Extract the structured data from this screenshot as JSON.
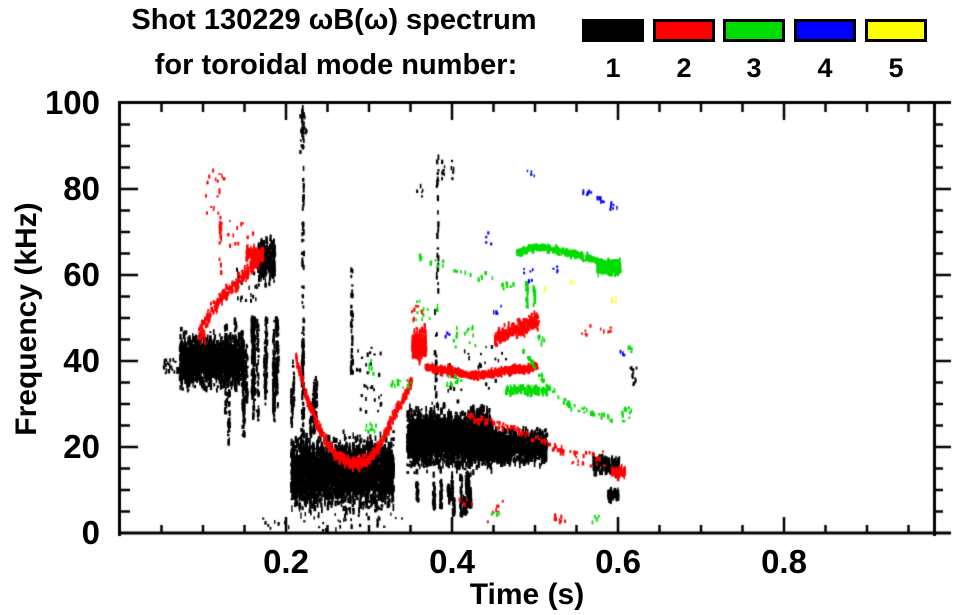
{
  "header": {
    "title_line1": "Shot 130229 ωB(ω) spectrum",
    "title_line2": "for toroidal mode number:"
  },
  "legend": {
    "items": [
      {
        "label": "1",
        "color": "#000000"
      },
      {
        "label": "2",
        "color": "#ff0000"
      },
      {
        "label": "3",
        "color": "#00dc00"
      },
      {
        "label": "4",
        "color": "#0000ff"
      },
      {
        "label": "5",
        "color": "#ffff00"
      }
    ]
  },
  "chart_data": {
    "type": "scatter",
    "title": "Shot 130229 ωB(ω) spectrum for toroidal mode number: 1 2 3 4 5",
    "xlabel": "Time (s)",
    "ylabel": "Frequency (kHz)",
    "xlim": [
      0,
      1.0
    ],
    "ylim": [
      0,
      100
    ],
    "xticks": [
      0.2,
      0.4,
      0.6,
      0.8
    ],
    "xtick_labels": [
      "0.2",
      "0.4",
      "0.6",
      "0.8"
    ],
    "yticks": [
      0,
      20,
      40,
      60,
      80,
      100
    ],
    "ytick_labels": [
      "0",
      "20",
      "40",
      "60",
      "80",
      "100"
    ],
    "x_minor_step": 0.05,
    "y_minor_step": 5,
    "grid": false,
    "legend_position": "top-right",
    "series": [
      {
        "mode": 1,
        "name": "1",
        "color": "#000000"
      },
      {
        "mode": 2,
        "name": "2",
        "color": "#ff0000"
      },
      {
        "mode": 3,
        "name": "3",
        "color": "#00dc00"
      },
      {
        "mode": 4,
        "name": "4",
        "color": "#0000ff"
      },
      {
        "mode": 5,
        "name": "5",
        "color": "#ffff00"
      }
    ],
    "clusters": [
      {
        "m": 1,
        "k": "dots",
        "t": [
          0.052,
          0.075
        ],
        "f": [
          37,
          41
        ],
        "n": 30
      },
      {
        "m": 1,
        "k": "blob",
        "t": [
          0.072,
          0.15
        ],
        "f": [
          32,
          48
        ],
        "n": 1600
      },
      {
        "m": 1,
        "k": "vstreaks",
        "t": [
          0.125,
          0.19
        ],
        "f": [
          20,
          50
        ],
        "c": 16,
        "n": 42
      },
      {
        "m": 1,
        "k": "blob",
        "t": [
          0.166,
          0.187
        ],
        "f": [
          57,
          70
        ],
        "n": 300
      },
      {
        "m": 1,
        "k": "dots",
        "t": [
          0.14,
          0.166
        ],
        "f": [
          54,
          62
        ],
        "n": 26
      },
      {
        "m": 1,
        "k": "vline",
        "t": 0.2205,
        "f": [
          30,
          99
        ],
        "n": 70
      },
      {
        "m": 1,
        "k": "vline",
        "t": 0.2205,
        "f": [
          14,
          45
        ],
        "n": 80
      },
      {
        "m": 1,
        "k": "dots",
        "t": [
          0.217,
          0.225
        ],
        "f": [
          88,
          99
        ],
        "n": 14
      },
      {
        "m": 1,
        "k": "blob",
        "t": [
          0.206,
          0.33
        ],
        "f": [
          3.5,
          24.5
        ],
        "n": 3000
      },
      {
        "m": 1,
        "k": "vstreaks",
        "t": [
          0.207,
          0.24
        ],
        "f": [
          22,
          40
        ],
        "c": 6,
        "n": 22
      },
      {
        "m": 1,
        "k": "vline",
        "t": 0.2795,
        "f": [
          36,
          62
        ],
        "n": 34
      },
      {
        "m": 1,
        "k": "dots",
        "t": [
          0.285,
          0.315
        ],
        "f": [
          27,
          44
        ],
        "n": 30
      },
      {
        "m": 1,
        "k": "dots",
        "t": [
          0.17,
          0.345
        ],
        "f": [
          0.5,
          4.5
        ],
        "n": 40
      },
      {
        "m": 1,
        "k": "blob",
        "t": [
          0.346,
          0.448
        ],
        "f": [
          13,
          31
        ],
        "n": 2600
      },
      {
        "m": 1,
        "k": "blob",
        "t": [
          0.443,
          0.515
        ],
        "f": [
          15,
          25
        ],
        "n": 1000
      },
      {
        "m": 1,
        "k": "vstreaks",
        "t": [
          0.35,
          0.43
        ],
        "f": [
          3,
          14
        ],
        "c": 12,
        "n": 26
      },
      {
        "m": 1,
        "k": "vline",
        "t": 0.3825,
        "f": [
          55,
          88
        ],
        "n": 26
      },
      {
        "m": 1,
        "k": "dots",
        "t": [
          0.388,
          0.403
        ],
        "f": [
          82,
          87
        ],
        "n": 12
      },
      {
        "m": 1,
        "k": "dots",
        "t": [
          0.358,
          0.365
        ],
        "f": [
          78,
          81
        ],
        "n": 5
      },
      {
        "m": 1,
        "k": "vline",
        "t": 0.3805,
        "f": [
          31,
          54
        ],
        "n": 22
      },
      {
        "m": 1,
        "k": "dots",
        "t": [
          0.395,
          0.47
        ],
        "f": [
          33,
          44
        ],
        "n": 36
      },
      {
        "m": 1,
        "k": "blob",
        "t": [
          0.57,
          0.603
        ],
        "f": [
          13,
          18.5
        ],
        "n": 130
      },
      {
        "m": 1,
        "k": "blob",
        "t": [
          0.588,
          0.601
        ],
        "f": [
          7,
          11
        ],
        "n": 45
      },
      {
        "m": 1,
        "k": "dots",
        "t": [
          0.615,
          0.623
        ],
        "f": [
          34,
          39
        ],
        "n": 12
      },
      {
        "m": 2,
        "k": "track",
        "p": [
          [
            0.095,
            46
          ],
          [
            0.107,
            50.5
          ],
          [
            0.122,
            54.5
          ],
          [
            0.14,
            58
          ],
          [
            0.155,
            61
          ],
          [
            0.172,
            64.5
          ]
        ],
        "n": 230,
        "j": 1.6
      },
      {
        "m": 2,
        "k": "vline",
        "t": 0.121,
        "f": [
          58,
          84
        ],
        "n": 18
      },
      {
        "m": 2,
        "k": "dots",
        "t": [
          0.103,
          0.126
        ],
        "f": [
          74,
          85
        ],
        "n": 16
      },
      {
        "m": 2,
        "k": "dots",
        "t": [
          0.13,
          0.168
        ],
        "f": [
          65,
          73
        ],
        "n": 12
      },
      {
        "m": 2,
        "k": "blob",
        "t": [
          0.152,
          0.173
        ],
        "f": [
          62,
          67.5
        ],
        "n": 70
      },
      {
        "m": 2,
        "k": "dots",
        "t": [
          0.094,
          0.106
        ],
        "f": [
          44,
          48
        ],
        "n": 10
      },
      {
        "m": 2,
        "k": "track",
        "p": [
          [
            0.212,
            41
          ],
          [
            0.224,
            32
          ],
          [
            0.238,
            25
          ],
          [
            0.252,
            20
          ],
          [
            0.268,
            17
          ],
          [
            0.285,
            16
          ],
          [
            0.3,
            17
          ],
          [
            0.312,
            20
          ],
          [
            0.322,
            24
          ],
          [
            0.332,
            28
          ]
        ],
        "n": 450,
        "j": 1.3
      },
      {
        "m": 2,
        "k": "track",
        "p": [
          [
            0.332,
            28
          ],
          [
            0.342,
            31.5
          ],
          [
            0.352,
            35.5
          ]
        ],
        "n": 70,
        "j": 1.2
      },
      {
        "m": 2,
        "k": "blob",
        "t": [
          0.352,
          0.369
        ],
        "f": [
          39,
          48.5
        ],
        "n": 230
      },
      {
        "m": 2,
        "k": "dots",
        "t": [
          0.35,
          0.366
        ],
        "f": [
          49.5,
          53
        ],
        "n": 8
      },
      {
        "m": 2,
        "k": "track",
        "p": [
          [
            0.368,
            38.6
          ],
          [
            0.39,
            37.8
          ],
          [
            0.412,
            37.1
          ],
          [
            0.428,
            36.6
          ],
          [
            0.443,
            36.9
          ],
          [
            0.458,
            37.4
          ],
          [
            0.475,
            37.9
          ],
          [
            0.503,
            38.5
          ]
        ],
        "n": 600,
        "j": 0.85
      },
      {
        "m": 2,
        "k": "track",
        "p": [
          [
            0.452,
            45.3
          ],
          [
            0.468,
            46.6
          ],
          [
            0.486,
            48
          ],
          [
            0.505,
            49.6
          ]
        ],
        "n": 280,
        "j": 1.7
      },
      {
        "m": 2,
        "k": "dots",
        "t": [
          0.555,
          0.593
        ],
        "f": [
          46,
          48.5
        ],
        "n": 10
      },
      {
        "m": 2,
        "k": "track",
        "p": [
          [
            0.42,
            27
          ],
          [
            0.455,
            25
          ],
          [
            0.49,
            22.8
          ],
          [
            0.52,
            20.3
          ],
          [
            0.537,
            18.6
          ]
        ],
        "n": 80,
        "j": 0.9
      },
      {
        "m": 2,
        "k": "dots",
        "t": [
          0.54,
          0.586
        ],
        "f": [
          15.5,
          19
        ],
        "n": 26
      },
      {
        "m": 2,
        "k": "blob",
        "t": [
          0.592,
          0.609
        ],
        "f": [
          12.5,
          16
        ],
        "n": 50
      },
      {
        "m": 2,
        "k": "dots",
        "t": [
          0.519,
          0.539
        ],
        "f": [
          2.3,
          4.2
        ],
        "n": 8
      },
      {
        "m": 2,
        "k": "dots",
        "t": [
          0.443,
          0.462
        ],
        "f": [
          2.5,
          8
        ],
        "n": 7
      },
      {
        "m": 2,
        "k": "dots",
        "t": [
          0.405,
          0.425
        ],
        "f": [
          6.5,
          8.5
        ],
        "n": 6
      },
      {
        "m": 3,
        "k": "dots",
        "t": [
          0.296,
          0.318
        ],
        "f": [
          23,
          25.5
        ],
        "n": 10
      },
      {
        "m": 3,
        "k": "dots",
        "t": [
          0.299,
          0.307
        ],
        "f": [
          37,
          40.5
        ],
        "n": 6
      },
      {
        "m": 3,
        "k": "dots",
        "t": [
          0.326,
          0.352
        ],
        "f": [
          33.8,
          35.6
        ],
        "n": 14
      },
      {
        "m": 3,
        "k": "dots",
        "t": [
          0.352,
          0.384
        ],
        "f": [
          49.5,
          54
        ],
        "n": 13
      },
      {
        "m": 3,
        "k": "track",
        "p": [
          [
            0.357,
            64.6
          ],
          [
            0.4,
            61.6
          ],
          [
            0.44,
            59.2
          ],
          [
            0.478,
            57.2
          ]
        ],
        "n": 26,
        "j": 1.0
      },
      {
        "m": 3,
        "k": "blob",
        "t": [
          0.465,
          0.515
        ],
        "f": [
          31.8,
          34.4
        ],
        "n": 80
      },
      {
        "m": 3,
        "k": "dots",
        "t": [
          0.394,
          0.412
        ],
        "f": [
          34,
          36.5
        ],
        "n": 10
      },
      {
        "m": 3,
        "k": "track",
        "p": [
          [
            0.478,
            65
          ],
          [
            0.495,
            66.3
          ],
          [
            0.515,
            66.3
          ],
          [
            0.535,
            65.3
          ],
          [
            0.558,
            64.2
          ],
          [
            0.578,
            63.1
          ],
          [
            0.592,
            62.3
          ]
        ],
        "n": 320,
        "j": 0.75
      },
      {
        "m": 3,
        "k": "blob",
        "t": [
          0.575,
          0.603
        ],
        "f": [
          59.5,
          63.8
        ],
        "n": 260
      },
      {
        "m": 3,
        "k": "vline",
        "t": 0.4905,
        "f": [
          52.5,
          58
        ],
        "n": 16
      },
      {
        "m": 3,
        "k": "vline",
        "t": 0.4995,
        "f": [
          53,
          57
        ],
        "n": 12
      },
      {
        "m": 3,
        "k": "dots",
        "t": [
          0.502,
          0.513
        ],
        "f": [
          43,
          46
        ],
        "n": 8
      },
      {
        "m": 3,
        "k": "dots",
        "t": [
          0.402,
          0.43
        ],
        "f": [
          43,
          48
        ],
        "n": 16
      },
      {
        "m": 3,
        "k": "track",
        "p": [
          [
            0.483,
            43
          ],
          [
            0.503,
            37.5
          ],
          [
            0.523,
            32.5
          ],
          [
            0.548,
            29
          ],
          [
            0.572,
            27.5
          ],
          [
            0.595,
            26.3
          ]
        ],
        "n": 60,
        "j": 0.8
      },
      {
        "m": 3,
        "k": "dots",
        "t": [
          0.603,
          0.617
        ],
        "f": [
          26,
          29.5
        ],
        "n": 12
      },
      {
        "m": 3,
        "k": "dots",
        "t": [
          0.612,
          0.62
        ],
        "f": [
          41.8,
          43.2
        ],
        "n": 5
      },
      {
        "m": 3,
        "k": "dots",
        "t": [
          0.568,
          0.577
        ],
        "f": [
          2.4,
          4
        ],
        "n": 5
      },
      {
        "m": 3,
        "k": "dots",
        "t": [
          0.448,
          0.457
        ],
        "f": [
          3.5,
          5
        ],
        "n": 4
      },
      {
        "m": 4,
        "k": "dots",
        "t": [
          0.49,
          0.5
        ],
        "f": [
          83,
          84.6
        ],
        "n": 4
      },
      {
        "m": 4,
        "k": "dots",
        "t": [
          0.558,
          0.569
        ],
        "f": [
          78.4,
          80
        ],
        "n": 7
      },
      {
        "m": 4,
        "k": "dots",
        "t": [
          0.575,
          0.586
        ],
        "f": [
          76.6,
          78.2
        ],
        "n": 7
      },
      {
        "m": 4,
        "k": "dots",
        "t": [
          0.589,
          0.599
        ],
        "f": [
          75,
          76.8
        ],
        "n": 7
      },
      {
        "m": 4,
        "k": "dots",
        "t": [
          0.484,
          0.498
        ],
        "f": [
          58.5,
          61.5
        ],
        "n": 7
      },
      {
        "m": 4,
        "k": "dots",
        "t": [
          0.52,
          0.528
        ],
        "f": [
          60,
          62
        ],
        "n": 4
      },
      {
        "m": 4,
        "k": "dots",
        "t": [
          0.44,
          0.448
        ],
        "f": [
          66.5,
          69.8
        ],
        "n": 4
      },
      {
        "m": 4,
        "k": "dots",
        "t": [
          0.603,
          0.61
        ],
        "f": [
          41,
          42.4
        ],
        "n": 4
      },
      {
        "m": 4,
        "k": "dots",
        "t": [
          0.392,
          0.398
        ],
        "f": [
          45.5,
          47
        ],
        "n": 3
      },
      {
        "m": 4,
        "k": "dots",
        "t": [
          0.45,
          0.465
        ],
        "f": [
          51,
          53
        ],
        "n": 4
      },
      {
        "m": 5,
        "k": "dots",
        "t": [
          0.592,
          0.598
        ],
        "f": [
          53.4,
          55.6
        ],
        "n": 4
      },
      {
        "m": 5,
        "k": "dots",
        "t": [
          0.508,
          0.513
        ],
        "f": [
          56,
          57.6
        ],
        "n": 3
      },
      {
        "m": 5,
        "k": "dots",
        "t": [
          0.543,
          0.548
        ],
        "f": [
          57.2,
          58.4
        ],
        "n": 2
      }
    ]
  }
}
